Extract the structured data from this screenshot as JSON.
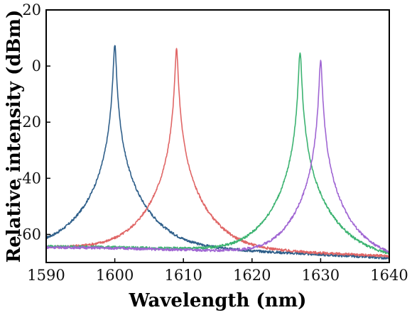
{
  "chart_data": {
    "type": "line",
    "title": "",
    "xlabel": "Wavelength (nm)",
    "ylabel": "Relative intensity (dBm)",
    "xlim": [
      1590,
      1640
    ],
    "ylim": [
      -70,
      20
    ],
    "x_ticks": [
      1590,
      1600,
      1610,
      1620,
      1630,
      1640
    ],
    "y_ticks": [
      20,
      0,
      -20,
      -40,
      -60
    ],
    "grid": false,
    "legend": "none",
    "series": [
      {
        "color": "#2f5f8a",
        "peak_wavelength": 1600.0,
        "peak_dbm": 7.5,
        "noise_floor_dbm": [
          -64.5,
          -68.5
        ]
      },
      {
        "color": "#e06666",
        "peak_wavelength": 1609.0,
        "peak_dbm": 6.0,
        "noise_floor_dbm": [
          -64.8,
          -67.8
        ]
      },
      {
        "color": "#3cb371",
        "peak_wavelength": 1627.0,
        "peak_dbm": 5.0,
        "noise_floor_dbm": [
          -64.3,
          -68.8
        ]
      },
      {
        "color": "#a066d3",
        "peak_wavelength": 1630.0,
        "peak_dbm": 2.0,
        "noise_floor_dbm": [
          -64.6,
          -69.0
        ]
      }
    ]
  }
}
